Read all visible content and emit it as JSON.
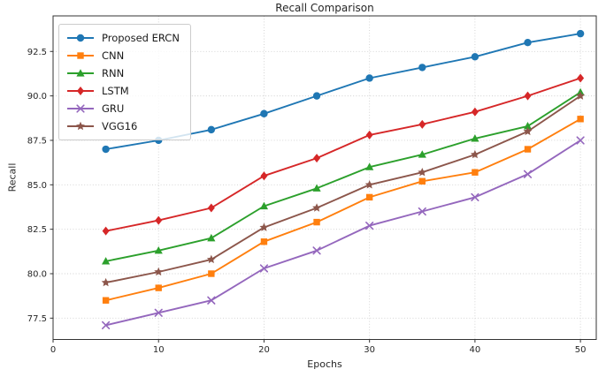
{
  "chart_data": {
    "type": "line",
    "title": "Recall Comparison",
    "xlabel": "Epochs",
    "ylabel": "Recall",
    "x": [
      5,
      10,
      15,
      20,
      25,
      30,
      35,
      40,
      45,
      50
    ],
    "series": [
      {
        "name": "Proposed ERCN",
        "color": "#1f77b4",
        "marker": "circle",
        "values": [
          87.0,
          87.5,
          88.1,
          89.0,
          90.0,
          91.0,
          91.6,
          92.2,
          93.0,
          93.5
        ]
      },
      {
        "name": "CNN",
        "color": "#ff7f0e",
        "marker": "square",
        "values": [
          78.5,
          79.2,
          80.0,
          81.8,
          82.9,
          84.3,
          85.2,
          85.7,
          87.0,
          88.7
        ]
      },
      {
        "name": "RNN",
        "color": "#2ca02c",
        "marker": "triangle",
        "values": [
          80.7,
          81.3,
          82.0,
          83.8,
          84.8,
          86.0,
          86.7,
          87.6,
          88.3,
          90.2
        ]
      },
      {
        "name": "LSTM",
        "color": "#d62728",
        "marker": "diamond",
        "values": [
          82.4,
          83.0,
          83.7,
          85.5,
          86.5,
          87.8,
          88.4,
          89.1,
          90.0,
          91.0
        ]
      },
      {
        "name": "GRU",
        "color": "#9467bd",
        "marker": "x",
        "values": [
          77.1,
          77.8,
          78.5,
          80.3,
          81.3,
          82.7,
          83.5,
          84.3,
          85.6,
          87.5
        ]
      },
      {
        "name": "VGG16",
        "color": "#8c564b",
        "marker": "star",
        "values": [
          79.5,
          80.1,
          80.8,
          82.6,
          83.7,
          85.0,
          85.7,
          86.7,
          88.0,
          90.0
        ]
      }
    ],
    "xticks": [
      0,
      10,
      20,
      30,
      40,
      50
    ],
    "yticks": [
      77.5,
      80.0,
      82.5,
      85.0,
      87.5,
      90.0,
      92.5
    ],
    "xlim": [
      0,
      51.5
    ],
    "ylim": [
      76.3,
      94.5
    ],
    "grid": true,
    "grid_color": "#cfcfcf",
    "spine_color": "#333333",
    "tick_label_color": "#262626",
    "legend_position": "upper left"
  }
}
